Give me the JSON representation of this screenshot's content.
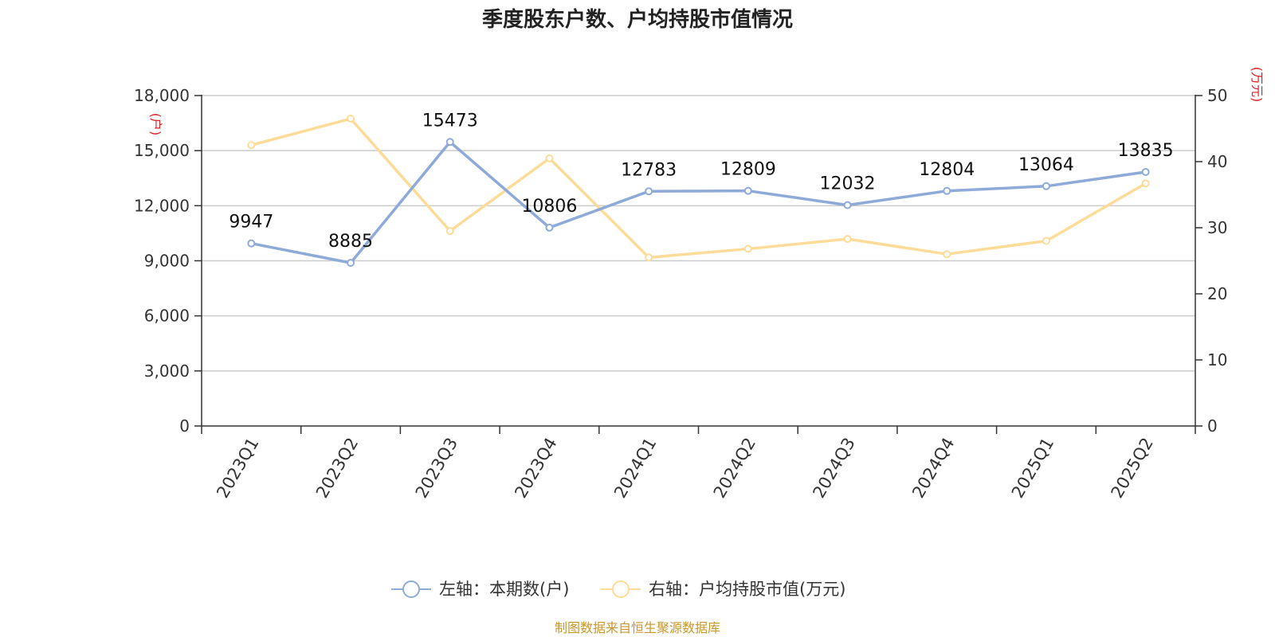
{
  "chart_data": {
    "type": "line",
    "title": "季度股东户数、户均持股市值情况",
    "categories": [
      "2023Q1",
      "2023Q2",
      "2023Q3",
      "2023Q4",
      "2024Q1",
      "2024Q2",
      "2024Q3",
      "2024Q4",
      "2025Q1",
      "2025Q2"
    ],
    "series": [
      {
        "name": "左轴：本期数(户)",
        "axis": "left",
        "color": "#8eaad8",
        "values": [
          9947,
          8885,
          15473,
          10806,
          12783,
          12809,
          12032,
          12804,
          13064,
          13835
        ],
        "labels_shown": true
      },
      {
        "name": "右轴：户均持股市值(万元)",
        "axis": "right",
        "color": "#fddc9a",
        "values": [
          42.5,
          46.5,
          29.5,
          40.5,
          25.5,
          26.8,
          28.3,
          26.0,
          28.0,
          36.7
        ],
        "labels_shown": false
      }
    ],
    "y_left": {
      "unit": "(户)",
      "ylim": [
        0,
        18000
      ],
      "ticks": [
        "0",
        "3,000",
        "6,000",
        "9,000",
        "12,000",
        "15,000",
        "18,000"
      ]
    },
    "y_right": {
      "unit": "(万元)",
      "ylim": [
        0,
        50
      ],
      "ticks": [
        "0",
        "10",
        "20",
        "30",
        "40",
        "50"
      ]
    },
    "grid": true,
    "legend_position": "bottom-center",
    "source": "制图数据来自恒生聚源数据库",
    "unit_color": "#e02020",
    "source_color": "#c8962a"
  }
}
